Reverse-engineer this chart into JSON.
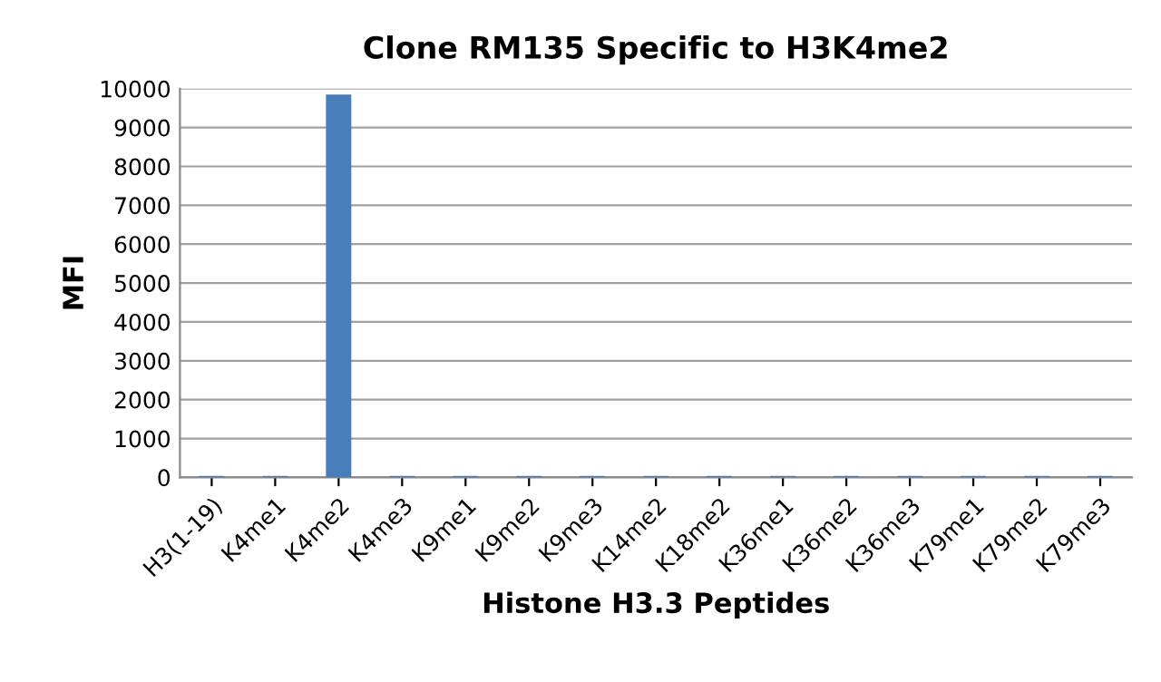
{
  "chart_data": {
    "type": "bar",
    "title": "Clone RM135 Specific to H3K4me2",
    "xlabel": "Histone H3.3 Peptides",
    "ylabel": "MFI",
    "categories": [
      "H3(1-19)",
      "K4me1",
      "K4me2",
      "K4me3",
      "K9me1",
      "K9me2",
      "K9me3",
      "K14me2",
      "K18me2",
      "K36me1",
      "K36me2",
      "K36me3",
      "K79me1",
      "K79me2",
      "K79me3"
    ],
    "values": [
      40,
      40,
      9850,
      40,
      40,
      40,
      40,
      40,
      40,
      40,
      40,
      40,
      40,
      40,
      40
    ],
    "color": "#4a7ebb",
    "ylim": [
      0,
      10000
    ],
    "yticks": [
      0,
      1000,
      2000,
      3000,
      4000,
      5000,
      6000,
      7000,
      8000,
      9000,
      10000
    ],
    "grid": "y"
  }
}
